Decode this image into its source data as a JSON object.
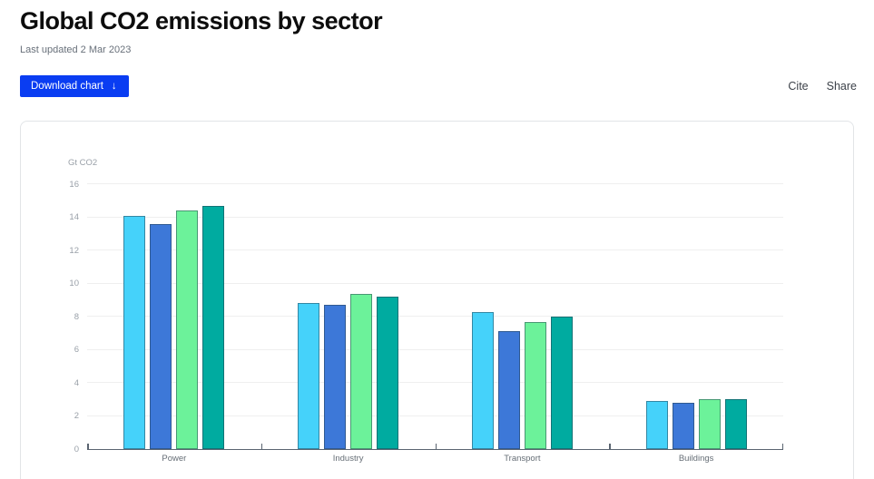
{
  "page": {
    "title": "Global CO2 emissions by sector",
    "subtitle": "Last updated 2 Mar 2023",
    "download_button_label": "Download chart",
    "download_icon": "↓",
    "cite_link": "Cite",
    "share_link": "Share"
  },
  "colors": {
    "button_bg": "#0a3df2",
    "button_text": "#ffffff",
    "axis": "#5a6470",
    "gridline": "#efefef",
    "tick_label": "#99a0a8",
    "category_label": "#666e76"
  },
  "chart_data": {
    "type": "bar",
    "title": "Global CO2 emissions by sector",
    "xlabel": "",
    "ylabel": "Gt CO2",
    "ylim": [
      0,
      16
    ],
    "yticks": [
      0,
      2,
      4,
      6,
      8,
      10,
      12,
      14,
      16
    ],
    "grid": true,
    "legend": "none",
    "categories": [
      "Power",
      "Industry",
      "Transport",
      "Buildings"
    ],
    "series": [
      {
        "name": "light-blue",
        "color": "#45d2fa",
        "values": [
          14.1,
          8.8,
          8.3,
          2.9
        ]
      },
      {
        "name": "blue",
        "color": "#3d78d8",
        "values": [
          13.6,
          8.7,
          7.1,
          2.8
        ]
      },
      {
        "name": "green",
        "color": "#6cf29a",
        "values": [
          14.4,
          9.4,
          7.7,
          3.0
        ]
      },
      {
        "name": "teal",
        "color": "#00aba0",
        "values": [
          14.7,
          9.2,
          8.0,
          3.0
        ]
      }
    ]
  }
}
